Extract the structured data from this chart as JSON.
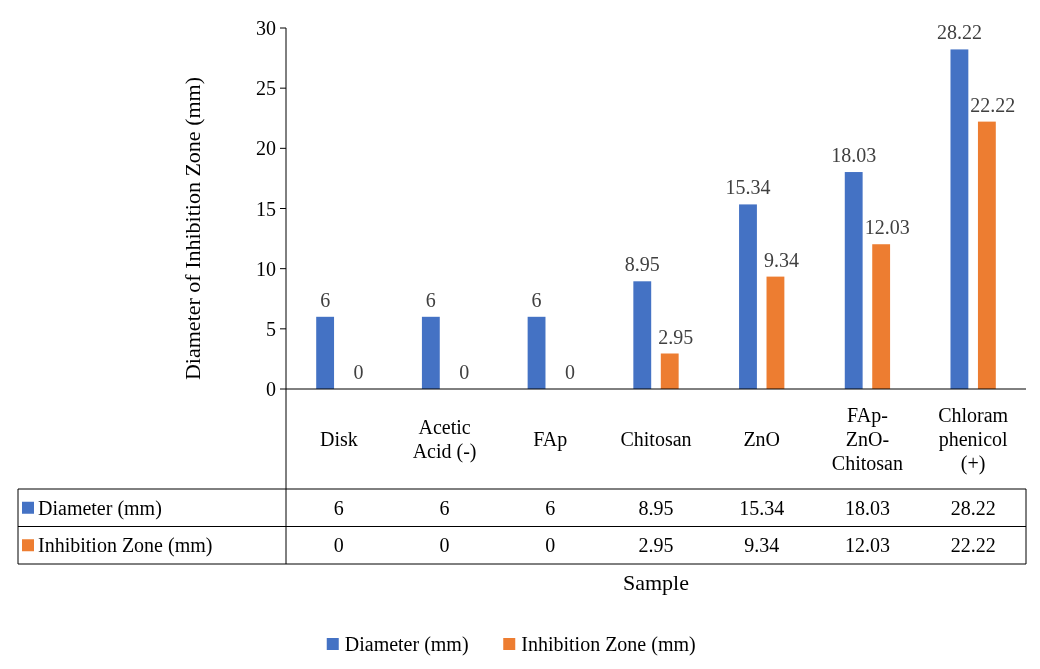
{
  "chart_data": {
    "type": "bar",
    "xlabel": "Sample",
    "ylabel": "Diameter of Inhibition Zone (mm)",
    "categories": [
      "Disk",
      "Acetic Acid (-)",
      "FAp",
      "Chitosan",
      "ZnO",
      "FAp-ZnO-Chitosan",
      "Chloramphenicol (+)"
    ],
    "series": [
      {
        "name": "Diameter (mm)",
        "color": "#4472c4",
        "values": [
          6,
          6,
          6,
          8.95,
          15.34,
          18.03,
          28.22
        ],
        "value_labels": [
          "6",
          "6",
          "6",
          "8.95",
          "15.34",
          "18.03",
          "28.22"
        ]
      },
      {
        "name": "Inhibition Zone (mm)",
        "color": "#ed7d31",
        "values": [
          0,
          0,
          0,
          2.95,
          9.34,
          12.03,
          22.22
        ],
        "value_labels": [
          "0",
          "0",
          "0",
          "2.95",
          "9.34",
          "12.03",
          "22.22"
        ]
      }
    ],
    "ylim": [
      0,
      30
    ],
    "yticks": [
      0,
      5,
      10,
      15,
      20,
      25,
      30
    ],
    "data_labels": true,
    "legend": "bottom"
  }
}
